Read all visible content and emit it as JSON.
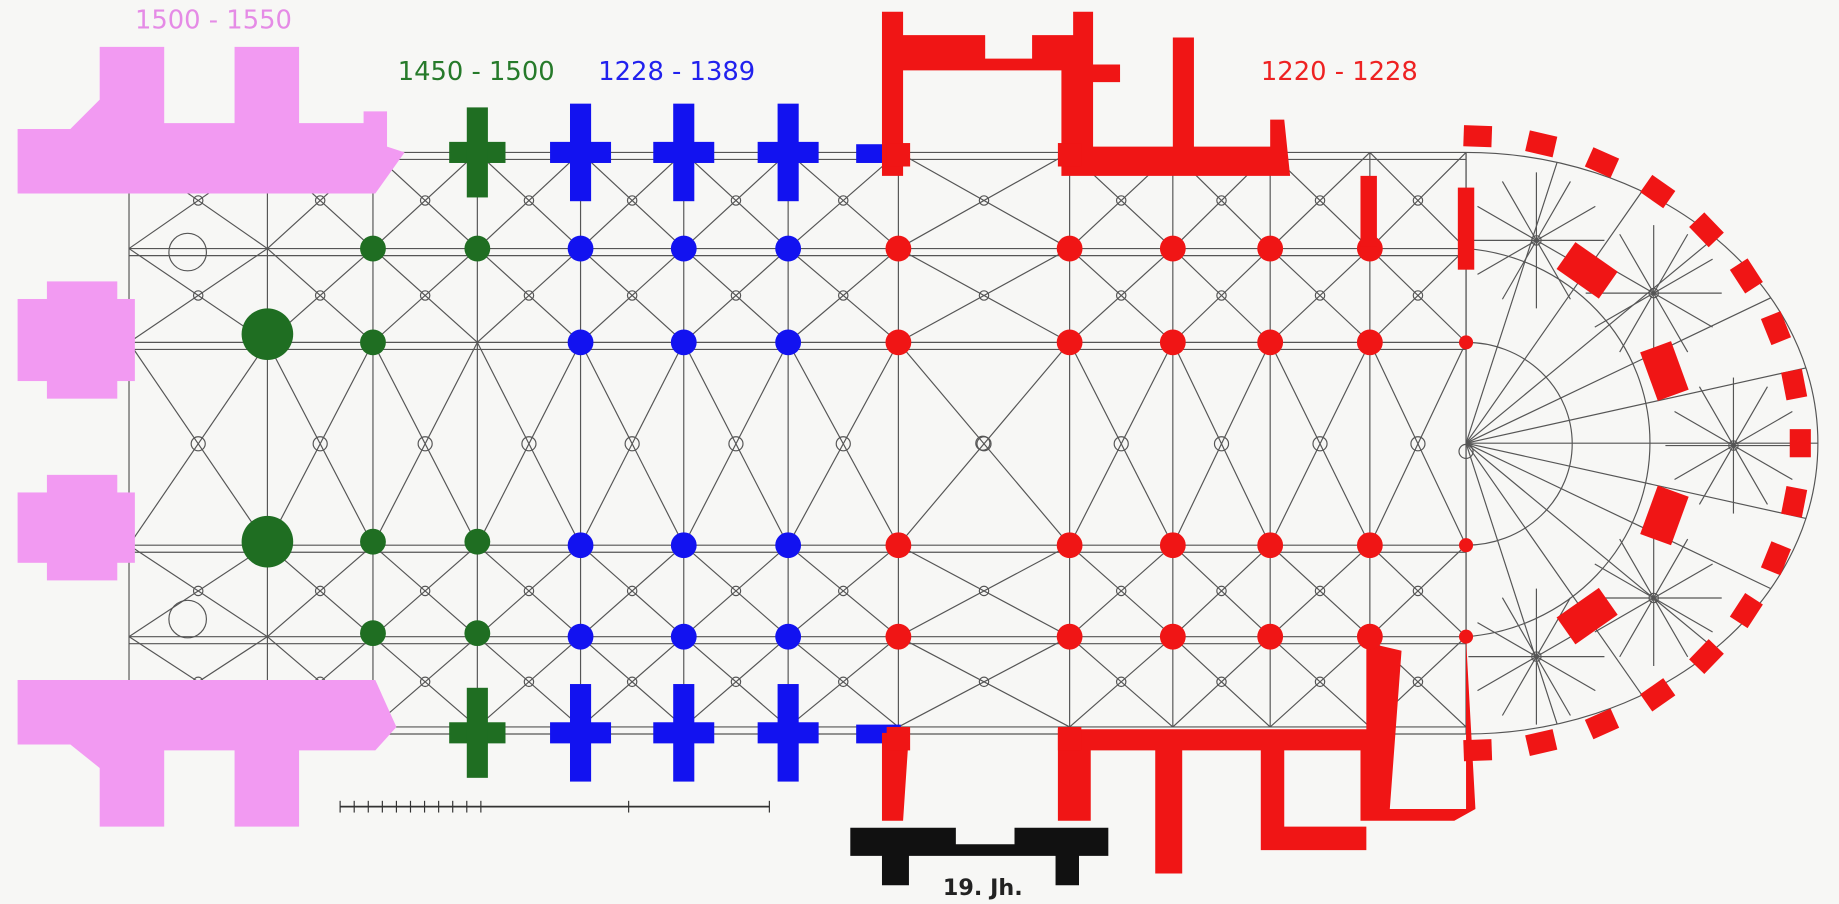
{
  "labels": {
    "west_towers": "1500 - 1550",
    "west_nave": "1450 - 1500",
    "nave": "1228 - 1389",
    "choir": "1220 - 1228",
    "portal": "19. Jh."
  }
}
